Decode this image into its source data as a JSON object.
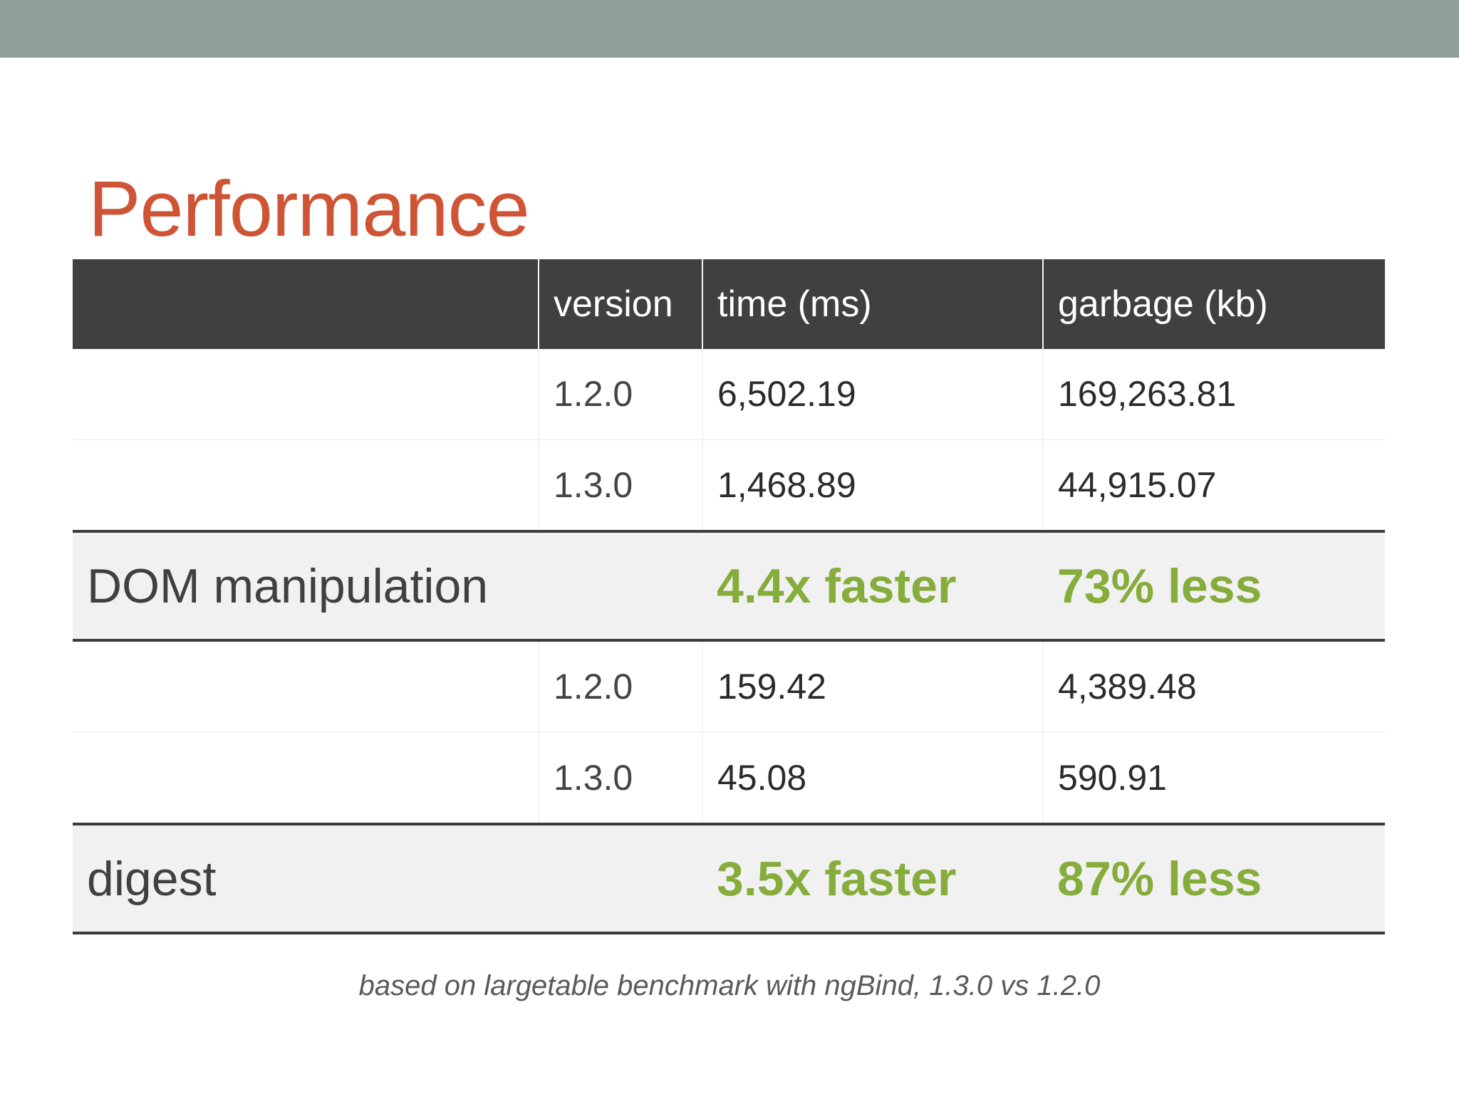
{
  "colors": {
    "top_bar": "#8fa19a",
    "title": "#cf5436",
    "header_bg": "#404040",
    "highlight_green": "#86ad3c"
  },
  "slide": {
    "title": "Performance",
    "footnote": "based on largetable benchmark with ngBind, 1.3.0 vs 1.2.0"
  },
  "table": {
    "headers": [
      "",
      "version",
      "time (ms)",
      "garbage (kb)"
    ],
    "groups": [
      {
        "label": "DOM manipulation",
        "rows": [
          {
            "version": "1.2.0",
            "time": "6,502.19",
            "garbage": "169,263.81"
          },
          {
            "version": "1.3.0",
            "time": "1,468.89",
            "garbage": "44,915.07"
          }
        ],
        "time_gain": "4.4x faster",
        "garbage_gain": "73% less"
      },
      {
        "label": "digest",
        "rows": [
          {
            "version": "1.2.0",
            "time": "159.42",
            "garbage": "4,389.48"
          },
          {
            "version": "1.3.0",
            "time": "45.08",
            "garbage": "590.91"
          }
        ],
        "time_gain": "3.5x faster",
        "garbage_gain": "87% less"
      }
    ]
  }
}
